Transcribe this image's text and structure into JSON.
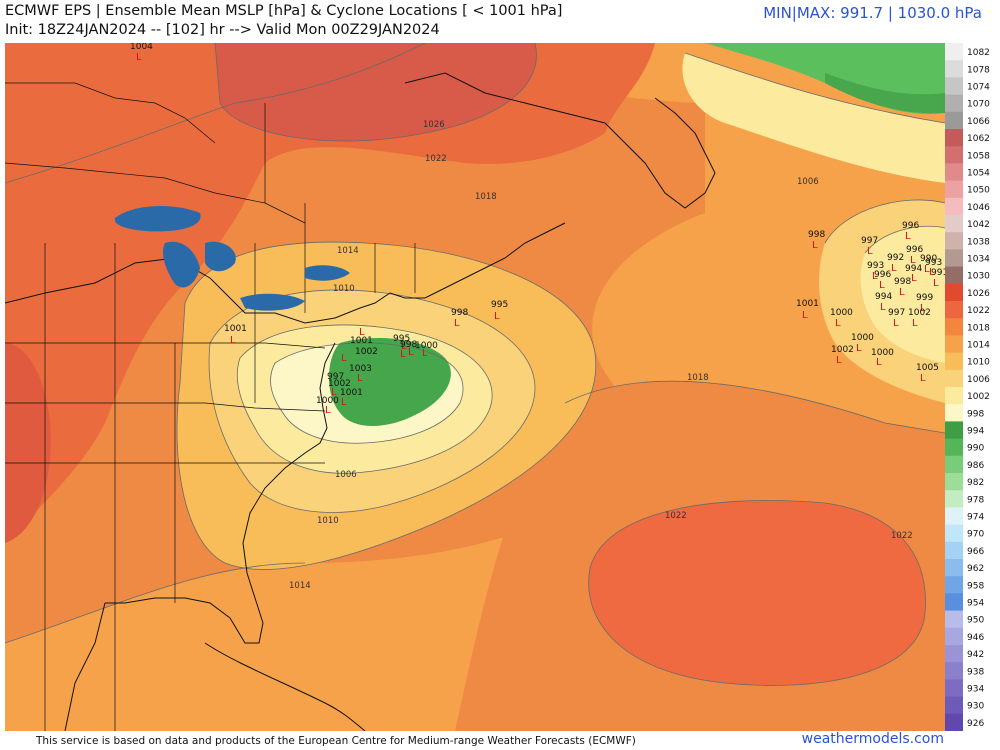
{
  "header": {
    "title": "ECMWF EPS | Ensemble Mean MSLP [hPa] & Cyclone Locations [ < 1001 hPa]",
    "subtitle": "Init: 18Z24JAN2024 -- [102] hr --> Valid Mon 00Z29JAN2024",
    "minmax": "MIN|MAX: 991.7 | 1030.0 hPa"
  },
  "footer": {
    "credit": "This service is based on data and products of the European Centre for Medium-range Weather Forecasts (ECMWF)",
    "brand": "weathermodels.com"
  },
  "colorbar": {
    "labels": [
      "1082",
      "1078",
      "1074",
      "1070",
      "1066",
      "1062",
      "1058",
      "1054",
      "1050",
      "1046",
      "1042",
      "1038",
      "1034",
      "1030",
      "1026",
      "1022",
      "1018",
      "1014",
      "1010",
      "1006",
      "1002",
      "998",
      "994",
      "990",
      "986",
      "982",
      "978",
      "974",
      "970",
      "966",
      "962",
      "958",
      "954",
      "950",
      "946",
      "942",
      "938",
      "934",
      "930",
      "926"
    ],
    "colors": [
      "#efefef",
      "#dcdcdc",
      "#c6c6c6",
      "#b0b0b0",
      "#9a9a9a",
      "#c45a5a",
      "#d27070",
      "#e08a8a",
      "#eca2a2",
      "#f4bcbc",
      "#e2cbc8",
      "#cfb3ab",
      "#b29a92",
      "#946e66",
      "#e24a30",
      "#ec6640",
      "#f3853f",
      "#f6a24a",
      "#f8bd58",
      "#fad27a",
      "#fcea9e",
      "#fdf6c6",
      "#3f9e44",
      "#55b659",
      "#79cc78",
      "#9cde97",
      "#c4ecc2",
      "#dff2f8",
      "#c0e6f8",
      "#a4d2f4",
      "#8abdee",
      "#70a6e6",
      "#5a8ede",
      "#b8bce8",
      "#a8a8e0",
      "#9a94d6",
      "#8a80cc",
      "#7c6cc2",
      "#6e5ab8",
      "#6048ae"
    ]
  },
  "isobars": [
    "1026",
    "1022",
    "1018",
    "1014",
    "1010",
    "1006",
    "1022",
    "1018",
    "1014",
    "1010",
    "1006",
    "1022",
    "1010"
  ],
  "cyclones": {
    "pressures": [
      "1004",
      "1001",
      "998",
      "995",
      "1001",
      "1000",
      "1003",
      "1002",
      "1001",
      "997",
      "1000",
      "1002",
      "998",
      "997",
      "993",
      "996",
      "992",
      "994",
      "996",
      "998",
      "1001",
      "1000",
      "994",
      "999",
      "997",
      "1002",
      "1000",
      "1002",
      "1005",
      "991",
      "993",
      "990",
      "996",
      "995",
      "998",
      "1000"
    ],
    "marker": "L"
  },
  "colors": {
    "accent": "#2a52d8",
    "cyclone_marker": "#d2141e"
  }
}
